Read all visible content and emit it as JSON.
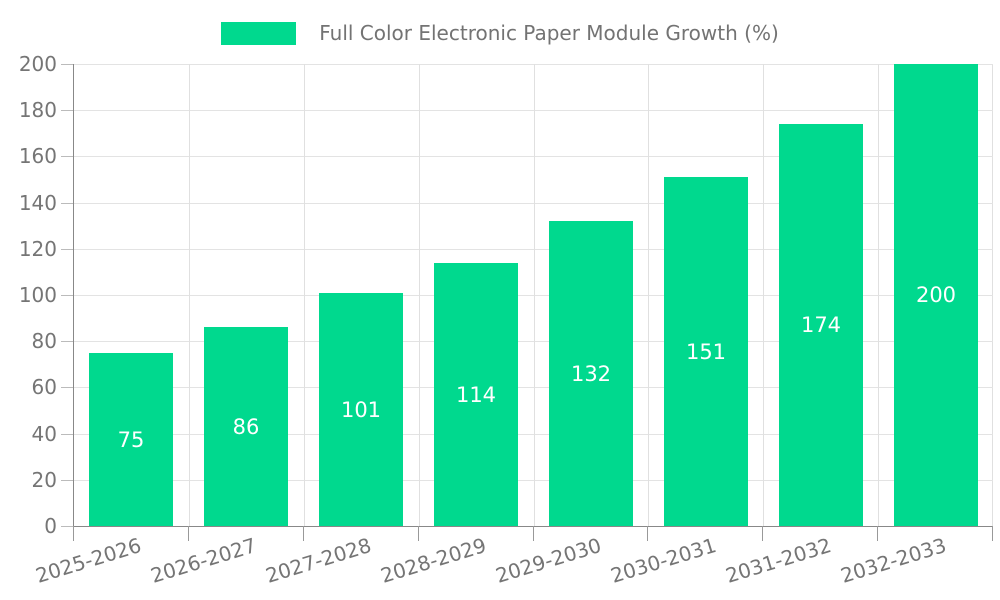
{
  "legend": {
    "label": "Full Color Electronic Paper Module Growth (%)",
    "swatch_color": "#00D98E"
  },
  "colors": {
    "bar": "#00D98E",
    "value_label": "#FFFFFF",
    "axis_label": "#757575",
    "legend_text": "#737373",
    "axis_line": "#888888",
    "grid_line": "#E3E3E3",
    "background": "#FFFFFF"
  },
  "chart_data": {
    "type": "bar",
    "title": "Full Color Electronic Paper Module Growth (%)",
    "categories": [
      "2025-2026",
      "2026-2027",
      "2027-2028",
      "2028-2029",
      "2029-2030",
      "2030-2031",
      "2031-2032",
      "2032-2033"
    ],
    "values": [
      75,
      86,
      101,
      114,
      132,
      151,
      174,
      200
    ],
    "xlabel": "",
    "ylabel": "",
    "ylim": [
      0,
      200
    ],
    "yticks": [
      0,
      20,
      40,
      60,
      80,
      100,
      120,
      140,
      160,
      180,
      200
    ],
    "grid": true,
    "legend_position": "top-center",
    "x_tick_label_rotation_deg": -17,
    "value_labels": {
      "position": "center",
      "color": "#FFFFFF"
    }
  }
}
